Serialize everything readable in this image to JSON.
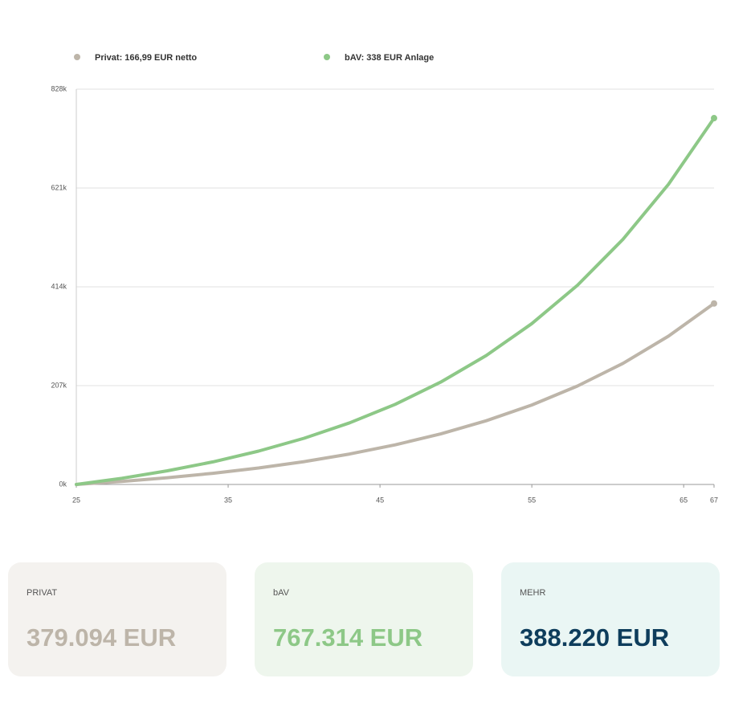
{
  "chart_data": {
    "type": "line",
    "x": [
      25,
      28,
      31,
      34,
      37,
      40,
      43,
      46,
      49,
      52,
      55,
      58,
      61,
      64,
      67
    ],
    "series": [
      {
        "name": "Privat: 166,99 EUR netto",
        "color": "#bdb5a9",
        "values": [
          0,
          6431,
          14143,
          23394,
          34487,
          47801,
          63764,
          82907,
          105902,
          133420,
          166460,
          206110,
          253650,
          310650,
          379094
        ]
      },
      {
        "name": "bAV: 338 EUR Anlage",
        "color": "#8dc887",
        "values": [
          0,
          13016,
          28625,
          47350,
          69802,
          96750,
          129060,
          167800,
          214340,
          270040,
          336910,
          417170,
          513390,
          628760,
          767314
        ]
      }
    ],
    "xlim": [
      25,
      67
    ],
    "xticks": [
      25,
      35,
      45,
      55,
      65,
      67
    ],
    "ylim": [
      0,
      828000
    ],
    "yticks": [
      {
        "value": 0,
        "label": "0k"
      },
      {
        "value": 207000,
        "label": "207k"
      },
      {
        "value": 414000,
        "label": "414k"
      },
      {
        "value": 621000,
        "label": "621k"
      },
      {
        "value": 828000,
        "label": "828k"
      }
    ],
    "grid": true,
    "legend": "top"
  },
  "cards": [
    {
      "label": "PRIVAT",
      "value": "379.094 EUR",
      "color": "#bdb5a9",
      "background": "#f4f2ef"
    },
    {
      "label": "bAV",
      "value": "767.314 EUR",
      "color": "#8dc887",
      "background": "#eef6ed"
    },
    {
      "label": "MEHR",
      "value": "388.220 EUR",
      "color": "#0e3d5c",
      "background": "#eaf6f4"
    }
  ]
}
